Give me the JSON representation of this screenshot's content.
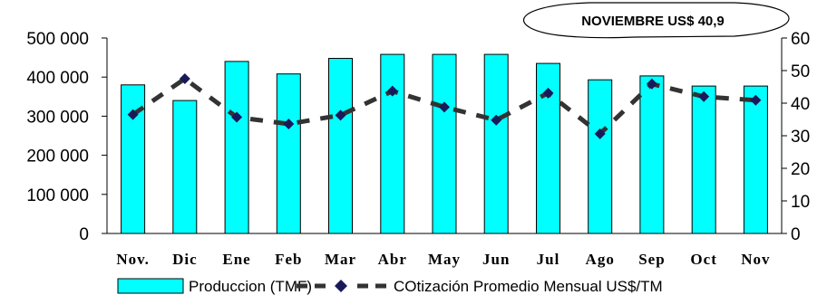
{
  "chart_data": {
    "type": "bar",
    "categories": [
      "Nov.",
      "Dic",
      "Ene",
      "Feb",
      "Mar",
      "Abr",
      "May",
      "Jun",
      "Jul",
      "Ago",
      "Sep",
      "Oct",
      "Nov"
    ],
    "series": [
      {
        "name": "Produccion (TMF)",
        "type": "bar",
        "axis": "left",
        "color": "#00FFFF",
        "values": [
          380000,
          340000,
          440000,
          408000,
          448000,
          458000,
          458000,
          458000,
          435000,
          393000,
          403000,
          377000,
          377000
        ]
      },
      {
        "name": "COtización Promedio Mensual US$/TM",
        "type": "line",
        "axis": "right",
        "color": "#333333",
        "marker_color": "#1A1A5A",
        "values": [
          36.5,
          47.5,
          35.7,
          33.6,
          36.3,
          43.7,
          38.8,
          34.8,
          43.1,
          30.6,
          45.9,
          42.0,
          40.9
        ]
      }
    ],
    "ylim_left": [
      0,
      500000
    ],
    "ylim_right": [
      0,
      60
    ],
    "yticks_left": [
      "0",
      "100 000",
      "200 000",
      "300 000",
      "400 000",
      "500 000"
    ],
    "yticks_right": [
      "0",
      "10",
      "20",
      "30",
      "40",
      "50",
      "60"
    ],
    "grid": false,
    "legend": "bottom",
    "annotation": "NOVIEMBRE US$ 40,9"
  }
}
